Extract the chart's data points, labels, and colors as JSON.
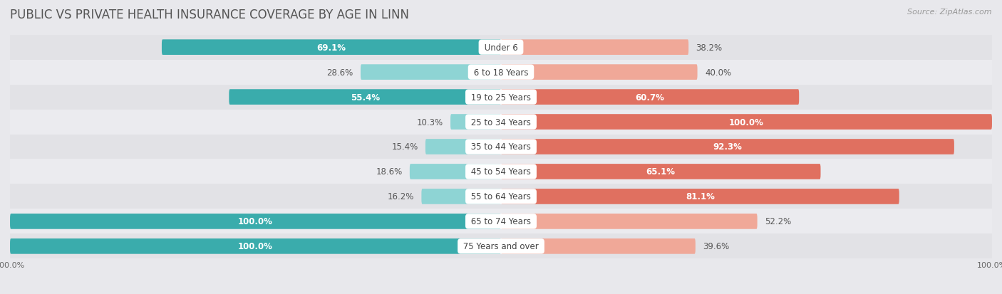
{
  "title": "PUBLIC VS PRIVATE HEALTH INSURANCE COVERAGE BY AGE IN LINN",
  "source": "Source: ZipAtlas.com",
  "categories": [
    "Under 6",
    "6 to 18 Years",
    "19 to 25 Years",
    "25 to 34 Years",
    "35 to 44 Years",
    "45 to 54 Years",
    "55 to 64 Years",
    "65 to 74 Years",
    "75 Years and over"
  ],
  "public_values": [
    69.1,
    28.6,
    55.4,
    10.3,
    15.4,
    18.6,
    16.2,
    100.0,
    100.0
  ],
  "private_values": [
    38.2,
    40.0,
    60.7,
    100.0,
    92.3,
    65.1,
    81.1,
    52.2,
    39.6
  ],
  "public_color_dark": "#3aacac",
  "public_color_light": "#8ed4d4",
  "private_color_dark": "#e07060",
  "private_color_light": "#f0a898",
  "row_color_dark": "#e2e2e6",
  "row_color_light": "#ebebef",
  "background_color": "#e8e8ec",
  "title_fontsize": 12,
  "label_fontsize": 8.5,
  "category_fontsize": 8.5,
  "legend_fontsize": 9,
  "source_fontsize": 8,
  "axis_label_fontsize": 8,
  "pub_label_inside_threshold": 35,
  "priv_label_inside_threshold": 55
}
